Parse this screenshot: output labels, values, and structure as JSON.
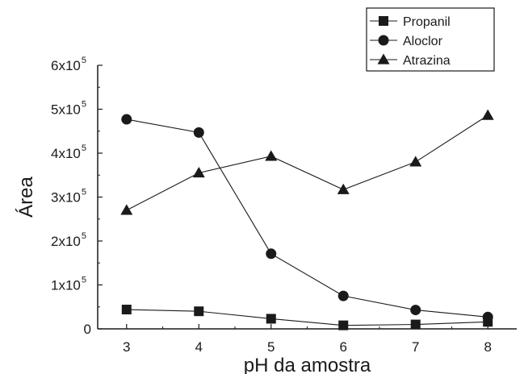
{
  "chart_data": {
    "type": "line",
    "xlabel": "pH da amostra",
    "ylabel": "Área",
    "x": [
      3,
      4,
      5,
      6,
      7,
      8
    ],
    "xticks": [
      "3",
      "4",
      "5",
      "6",
      "7",
      "8"
    ],
    "xlim": [
      2.6,
      8.4
    ],
    "ylim": [
      0,
      600000
    ],
    "yticks": [
      {
        "base": "0",
        "exp": ""
      },
      {
        "base": "1x10",
        "exp": "5"
      },
      {
        "base": "2x10",
        "exp": "5"
      },
      {
        "base": "3x10",
        "exp": "5"
      },
      {
        "base": "4x10",
        "exp": "5"
      },
      {
        "base": "5x10",
        "exp": "5"
      },
      {
        "base": "6x10",
        "exp": "5"
      }
    ],
    "legend_position": "top-right",
    "grid": false,
    "series": [
      {
        "name": "Propanil",
        "marker": "square",
        "values": [
          44000,
          40000,
          23000,
          8000,
          10000,
          16000
        ]
      },
      {
        "name": "Aloclor",
        "marker": "circle",
        "values": [
          477000,
          447000,
          171000,
          75000,
          43000,
          27000
        ]
      },
      {
        "name": "Atrazina",
        "marker": "triangle",
        "values": [
          270000,
          355000,
          393000,
          317000,
          380000,
          486000
        ]
      }
    ],
    "colors": {
      "line": "#1a1a1a",
      "background": "#ffffff"
    }
  }
}
